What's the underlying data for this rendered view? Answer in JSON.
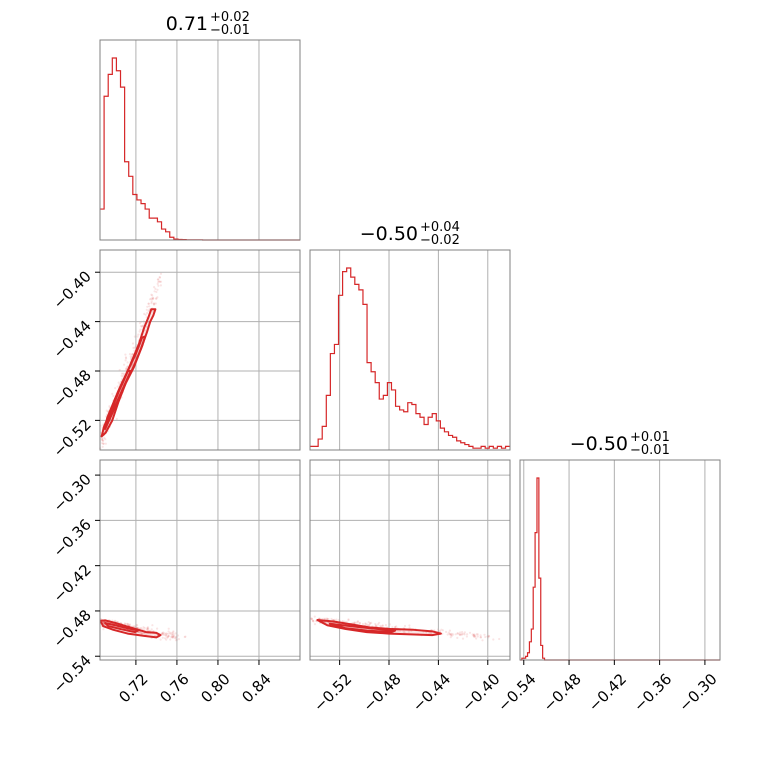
{
  "colors": {
    "accent": "#d62728",
    "grid": "#b0b0b0",
    "frame": "#808080"
  },
  "chart_data": {
    "type": "corner",
    "grid": true,
    "titles": [
      {
        "value": "0.71",
        "plus": "+0.02",
        "minus": "−0.01"
      },
      {
        "value": "−0.50",
        "plus": "+0.04",
        "minus": "−0.02"
      },
      {
        "value": "−0.50",
        "plus": "+0.01",
        "minus": "−0.01"
      }
    ],
    "axes": {
      "p0": {
        "range": [
          0.685,
          0.88
        ],
        "ticks": [
          0.72,
          0.76,
          0.8,
          0.84
        ],
        "tick_labels": [
          "0.72",
          "0.76",
          "0.80",
          "0.84"
        ]
      },
      "p1": {
        "range": [
          -0.544,
          -0.382
        ],
        "ticks": [
          -0.52,
          -0.48,
          -0.44,
          -0.4
        ],
        "tick_labels": [
          "−0.52",
          "−0.48",
          "−0.44",
          "−0.40"
        ]
      },
      "p2": {
        "range": [
          -0.545,
          -0.28
        ],
        "ticks": [
          -0.54,
          -0.48,
          -0.42,
          -0.36,
          -0.3
        ],
        "tick_labels": [
          "−0.54",
          "−0.48",
          "−0.42",
          "−0.36",
          "−0.30"
        ]
      }
    },
    "histograms": [
      {
        "param": "p0",
        "edges_start": 0.685,
        "bin_width": 0.004,
        "counts": [
          0.17,
          0.79,
          0.91,
          1.0,
          0.93,
          0.84,
          0.43,
          0.35,
          0.25,
          0.22,
          0.2,
          0.17,
          0.12,
          0.12,
          0.1,
          0.06,
          0.045,
          0.015,
          0.005,
          0.003,
          0.002,
          0.001,
          0.001,
          0.001,
          0.001,
          0.0,
          0.0,
          0.0,
          0.0,
          0.0,
          0.0,
          0.0,
          0.0,
          0.0,
          0.0,
          0.0,
          0.0,
          0.0,
          0.0,
          0.0,
          0.0,
          0.0,
          0.0,
          0.0,
          0.0,
          0.0,
          0.0,
          0.0,
          0.0
        ]
      },
      {
        "param": "p1",
        "edges_start": -0.544,
        "bin_width": 0.0033,
        "counts": [
          0.02,
          0.02,
          0.06,
          0.13,
          0.3,
          0.53,
          0.58,
          0.85,
          0.98,
          1.0,
          0.95,
          0.91,
          0.88,
          0.8,
          0.48,
          0.43,
          0.37,
          0.28,
          0.3,
          0.37,
          0.33,
          0.24,
          0.22,
          0.21,
          0.26,
          0.25,
          0.2,
          0.18,
          0.14,
          0.18,
          0.2,
          0.16,
          0.12,
          0.1,
          0.08,
          0.07,
          0.05,
          0.04,
          0.03,
          0.02,
          0.01,
          0.01,
          0.02,
          0.01,
          0.02,
          0.01,
          0.02,
          0.01,
          0.02
        ]
      },
      {
        "param": "p2",
        "edges_start": -0.545,
        "bin_width": 0.0025,
        "counts": [
          0.0,
          0.01,
          0.01,
          0.02,
          0.04,
          0.1,
          0.17,
          0.4,
          0.7,
          1.0,
          0.45,
          0.08,
          0.01,
          0.0,
          0.0,
          0.0,
          0.0,
          0.0,
          0.0,
          0.0,
          0.0,
          0.0,
          0.0,
          0.0,
          0.0,
          0.0,
          0.0,
          0.0,
          0.0,
          0.0,
          0.0,
          0.0,
          0.0,
          0.0,
          0.0,
          0.0,
          0.0,
          0.0,
          0.0,
          0.0,
          0.0,
          0.0,
          0.0,
          0.0,
          0.0,
          0.0,
          0.0,
          0.0,
          0.0,
          0.0,
          0.0,
          0.0,
          0.0,
          0.0,
          0.0,
          0.0,
          0.0,
          0.0,
          0.0,
          0.0,
          0.0,
          0.0,
          0.0,
          0.0,
          0.0,
          0.0,
          0.0,
          0.0,
          0.0,
          0.0,
          0.0,
          0.0,
          0.0,
          0.0,
          0.0,
          0.0,
          0.0,
          0.0,
          0.0,
          0.0,
          0.0,
          0.0,
          0.0,
          0.0,
          0.0,
          0.0,
          0.0,
          0.0,
          0.0,
          0.0,
          0.0,
          0.0,
          0.0,
          0.0,
          0.0,
          0.0,
          0.0,
          0.0,
          0.0,
          0.0,
          0.0,
          0.0,
          0.0,
          0.0,
          0.0,
          0.0
        ]
      }
    ],
    "pairs": [
      {
        "x_param": "p0",
        "y_param": "p1",
        "contours": [
          [
            [
              0.6866,
              -0.533
            ],
            [
              0.6905,
              -0.53
            ],
            [
              0.697,
              -0.52
            ],
            [
              0.703,
              -0.505
            ],
            [
              0.71,
              -0.49
            ],
            [
              0.718,
              -0.477
            ],
            [
              0.725,
              -0.462
            ],
            [
              0.731,
              -0.448
            ],
            [
              0.734,
              -0.44
            ],
            [
              0.737,
              -0.435
            ],
            [
              0.739,
              -0.43
            ],
            [
              0.735,
              -0.43
            ],
            [
              0.732,
              -0.437
            ],
            [
              0.728,
              -0.445
            ],
            [
              0.723,
              -0.458
            ],
            [
              0.716,
              -0.472
            ],
            [
              0.708,
              -0.488
            ],
            [
              0.7,
              -0.502
            ],
            [
              0.694,
              -0.515
            ],
            [
              0.689,
              -0.525
            ],
            [
              0.6866,
              -0.533
            ]
          ],
          [
            [
              0.69,
              -0.527
            ],
            [
              0.695,
              -0.518
            ],
            [
              0.702,
              -0.505
            ],
            [
              0.71,
              -0.49
            ],
            [
              0.718,
              -0.476
            ],
            [
              0.726,
              -0.46
            ],
            [
              0.729,
              -0.452
            ],
            [
              0.726,
              -0.453
            ],
            [
              0.72,
              -0.466
            ],
            [
              0.712,
              -0.48
            ],
            [
              0.704,
              -0.494
            ],
            [
              0.697,
              -0.508
            ],
            [
              0.692,
              -0.518
            ],
            [
              0.69,
              -0.527
            ]
          ],
          [
            [
              0.692,
              -0.523
            ],
            [
              0.7,
              -0.508
            ],
            [
              0.708,
              -0.493
            ],
            [
              0.715,
              -0.48
            ],
            [
              0.712,
              -0.48
            ],
            [
              0.704,
              -0.495
            ],
            [
              0.697,
              -0.51
            ],
            [
              0.692,
              -0.523
            ]
          ]
        ],
        "density_line": [
          [
            0.687,
            -0.533
          ],
          [
            0.745,
            -0.405
          ]
        ],
        "density_spread": [
          0.003,
          0.008
        ]
      },
      {
        "x_param": "p0",
        "y_param": "p2",
        "contours": [
          [
            [
              0.6855,
              -0.493
            ],
            [
              0.69,
              -0.4925
            ],
            [
              0.7,
              -0.496
            ],
            [
              0.71,
              -0.5
            ],
            [
              0.72,
              -0.504
            ],
            [
              0.73,
              -0.508
            ],
            [
              0.74,
              -0.509
            ],
            [
              0.744,
              -0.512
            ],
            [
              0.74,
              -0.515
            ],
            [
              0.728,
              -0.513
            ],
            [
              0.712,
              -0.51
            ],
            [
              0.698,
              -0.505
            ],
            [
              0.688,
              -0.5
            ],
            [
              0.6855,
              -0.493
            ]
          ],
          [
            [
              0.69,
              -0.496
            ],
            [
              0.7,
              -0.499
            ],
            [
              0.712,
              -0.503
            ],
            [
              0.722,
              -0.506
            ],
            [
              0.719,
              -0.508
            ],
            [
              0.705,
              -0.504
            ],
            [
              0.693,
              -0.5
            ],
            [
              0.69,
              -0.496
            ]
          ]
        ],
        "density_line": [
          [
            0.686,
            -0.494
          ],
          [
            0.76,
            -0.515
          ]
        ],
        "density_spread": [
          0.01,
          0.005
        ]
      },
      {
        "x_param": "p1",
        "y_param": "p2",
        "contours": [
          [
            [
              -0.538,
              -0.492
            ],
            [
              -0.525,
              -0.494
            ],
            [
              -0.51,
              -0.498
            ],
            [
              -0.495,
              -0.502
            ],
            [
              -0.478,
              -0.504
            ],
            [
              -0.46,
              -0.505
            ],
            [
              -0.445,
              -0.507
            ],
            [
              -0.438,
              -0.51
            ],
            [
              -0.445,
              -0.512
            ],
            [
              -0.462,
              -0.511
            ],
            [
              -0.48,
              -0.51
            ],
            [
              -0.498,
              -0.508
            ],
            [
              -0.515,
              -0.504
            ],
            [
              -0.53,
              -0.499
            ],
            [
              -0.538,
              -0.492
            ]
          ],
          [
            [
              -0.528,
              -0.497
            ],
            [
              -0.512,
              -0.5
            ],
            [
              -0.495,
              -0.503
            ],
            [
              -0.475,
              -0.506
            ],
            [
              -0.478,
              -0.508
            ],
            [
              -0.498,
              -0.506
            ],
            [
              -0.515,
              -0.503
            ],
            [
              -0.528,
              -0.497
            ]
          ]
        ],
        "density_line": [
          [
            -0.54,
            -0.492
          ],
          [
            -0.4,
            -0.515
          ]
        ],
        "density_spread": [
          0.012,
          0.004
        ]
      }
    ]
  }
}
